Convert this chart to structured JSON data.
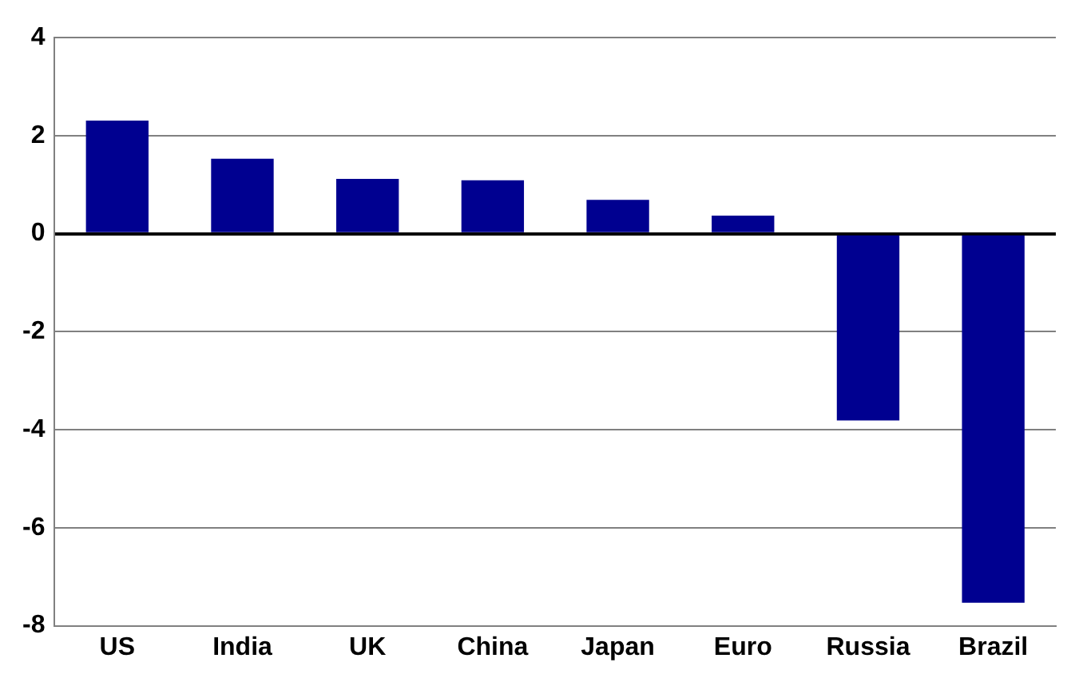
{
  "chart_data": {
    "type": "bar",
    "categories": [
      "US",
      "India",
      "UK",
      "China",
      "Japan",
      "Euro",
      "Russia",
      "Brazil"
    ],
    "values": [
      2.31,
      1.53,
      1.12,
      1.09,
      0.69,
      0.37,
      -3.81,
      -7.53
    ],
    "color": "#000090",
    "ylim": [
      -8,
      4
    ],
    "yticks": [
      -8,
      -6,
      -4,
      -2,
      0,
      2,
      4
    ],
    "grid": "y",
    "legend": false
  }
}
